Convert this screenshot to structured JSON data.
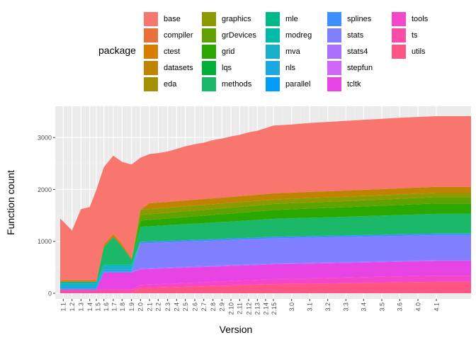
{
  "chart_data": {
    "type": "area",
    "stacked": true,
    "xlabel": "Version",
    "ylabel": "Function count",
    "ylim": [
      0,
      3500
    ],
    "yticks": [
      0,
      1000,
      2000,
      3000
    ],
    "grid": true,
    "legend_title": "package",
    "legend_placement": "top",
    "categories": [
      "1.1",
      "1.2",
      "1.3",
      "1.4",
      "1.5",
      "1.6",
      "1.7",
      "1.8",
      "1.9",
      "2.0",
      "2.1",
      "2.2",
      "2.3",
      "2.4",
      "2.5",
      "2.6",
      "2.7",
      "2.8",
      "2.9",
      "2.10",
      "2.11",
      "2.12",
      "2.13",
      "2.14",
      "2.15",
      "3.0",
      "3.1",
      "3.2",
      "3.3",
      "3.4",
      "3.5",
      "3.6",
      "4.0",
      "4.1"
    ],
    "legend": [
      {
        "name": "base",
        "color": "#F8766D"
      },
      {
        "name": "compiler",
        "color": "#E8703A"
      },
      {
        "name": "ctest",
        "color": "#D97C00"
      },
      {
        "name": "datasets",
        "color": "#BF8300"
      },
      {
        "name": "eda",
        "color": "#A69000"
      },
      {
        "name": "graphics",
        "color": "#8A9A00"
      },
      {
        "name": "grDevices",
        "color": "#62A200"
      },
      {
        "name": "grid",
        "color": "#2AA800"
      },
      {
        "name": "lqs",
        "color": "#00AE38"
      },
      {
        "name": "methods",
        "color": "#1AB868"
      },
      {
        "name": "mle",
        "color": "#00B98A"
      },
      {
        "name": "modreg",
        "color": "#00BBA8"
      },
      {
        "name": "mva",
        "color": "#17B0C8"
      },
      {
        "name": "nls",
        "color": "#19A9E0"
      },
      {
        "name": "parallel",
        "color": "#009EF8"
      },
      {
        "name": "splines",
        "color": "#3D8EFF"
      },
      {
        "name": "stats",
        "color": "#7F7FFF"
      },
      {
        "name": "stats4",
        "color": "#AC70FF"
      },
      {
        "name": "stepfun",
        "color": "#CE66F6"
      },
      {
        "name": "tcltk",
        "color": "#E744E3"
      },
      {
        "name": "tools",
        "color": "#F545C8"
      },
      {
        "name": "ts",
        "color": "#FF4BA8"
      },
      {
        "name": "utils",
        "color": "#FF5585"
      }
    ],
    "series": [
      {
        "name": "utils",
        "values": [
          0,
          0,
          0,
          0,
          0,
          0,
          0,
          0,
          0,
          100,
          105,
          110,
          115,
          120,
          125,
          130,
          135,
          140,
          145,
          150,
          155,
          160,
          165,
          170,
          175,
          180,
          185,
          190,
          195,
          200,
          205,
          210,
          215,
          220
        ]
      },
      {
        "name": "ts",
        "values": [
          70,
          70,
          70,
          70,
          70,
          70,
          70,
          70,
          70,
          0,
          0,
          0,
          0,
          0,
          0,
          0,
          0,
          0,
          0,
          0,
          0,
          0,
          0,
          0,
          0,
          0,
          0,
          0,
          0,
          0,
          0,
          0,
          0,
          0
        ]
      },
      {
        "name": "tools",
        "values": [
          0,
          0,
          0,
          0,
          0,
          0,
          0,
          0,
          0,
          60,
          62,
          65,
          67,
          70,
          72,
          75,
          77,
          80,
          82,
          85,
          87,
          90,
          92,
          95,
          97,
          100,
          102,
          105,
          107,
          110,
          112,
          115,
          117,
          120
        ]
      },
      {
        "name": "tcltk",
        "values": [
          0,
          0,
          0,
          0,
          0,
          330,
          330,
          330,
          330,
          300,
          299,
          298,
          297,
          296,
          295,
          294,
          293,
          292,
          291,
          290,
          289,
          288,
          287,
          286,
          285,
          284,
          283,
          282,
          281,
          280,
          280,
          280,
          280,
          280
        ]
      },
      {
        "name": "stats4",
        "values": [
          0,
          0,
          0,
          0,
          0,
          0,
          0,
          0,
          0,
          20,
          20,
          20,
          20,
          20,
          20,
          20,
          20,
          20,
          20,
          20,
          20,
          20,
          20,
          20,
          20,
          20,
          20,
          20,
          20,
          20,
          20,
          20,
          20,
          20
        ]
      },
      {
        "name": "stats",
        "values": [
          0,
          0,
          0,
          0,
          0,
          0,
          0,
          0,
          0,
          480,
          480,
          480,
          480,
          480,
          480,
          480,
          480,
          480,
          480,
          480,
          480,
          480,
          480,
          480,
          480,
          480,
          480,
          480,
          480,
          480,
          480,
          480,
          480,
          480
        ]
      },
      {
        "name": "splines",
        "values": [
          20,
          20,
          20,
          20,
          20,
          20,
          20,
          20,
          20,
          30,
          30,
          30,
          30,
          30,
          30,
          30,
          30,
          30,
          30,
          30,
          30,
          30,
          30,
          30,
          30,
          30,
          30,
          30,
          30,
          30,
          30,
          30,
          30,
          30
        ]
      },
      {
        "name": "nls",
        "values": [
          40,
          40,
          40,
          40,
          40,
          40,
          40,
          40,
          40,
          0,
          0,
          0,
          0,
          0,
          0,
          0,
          0,
          0,
          0,
          0,
          0,
          0,
          0,
          0,
          0,
          0,
          0,
          0,
          0,
          0,
          0,
          0,
          0,
          0
        ]
      },
      {
        "name": "mva",
        "values": [
          60,
          60,
          60,
          60,
          60,
          60,
          60,
          60,
          60,
          0,
          0,
          0,
          0,
          0,
          0,
          0,
          0,
          0,
          0,
          0,
          0,
          0,
          0,
          0,
          0,
          0,
          0,
          0,
          0,
          0,
          0,
          0,
          0,
          0
        ]
      },
      {
        "name": "modreg",
        "values": [
          30,
          30,
          30,
          30,
          30,
          30,
          30,
          30,
          30,
          0,
          0,
          0,
          0,
          0,
          0,
          0,
          0,
          0,
          0,
          0,
          0,
          0,
          0,
          0,
          0,
          0,
          0,
          0,
          0,
          0,
          0,
          0,
          0,
          0
        ]
      },
      {
        "name": "methods",
        "values": [
          0,
          0,
          0,
          0,
          0,
          340,
          540,
          350,
          100,
          290,
          294,
          297,
          301,
          305,
          309,
          312,
          316,
          320,
          324,
          327,
          331,
          335,
          339,
          342,
          346,
          350,
          354,
          357,
          361,
          365,
          369,
          372,
          376,
          380
        ]
      },
      {
        "name": "grid",
        "values": [
          0,
          0,
          0,
          0,
          0,
          0,
          0,
          0,
          0,
          120,
          123,
          127,
          130,
          133,
          137,
          140,
          143,
          147,
          150,
          153,
          157,
          160,
          163,
          167,
          170,
          173,
          177,
          180,
          183,
          187,
          190,
          193,
          197,
          200
        ]
      },
      {
        "name": "grDevices",
        "values": [
          0,
          0,
          0,
          0,
          0,
          0,
          0,
          0,
          0,
          110,
          110,
          111,
          111,
          112,
          112,
          112,
          113,
          113,
          114,
          114,
          115,
          115,
          115,
          116,
          116,
          117,
          117,
          117,
          118,
          118,
          119,
          119,
          120,
          120
        ]
      },
      {
        "name": "graphics",
        "values": [
          0,
          0,
          0,
          0,
          0,
          0,
          0,
          0,
          0,
          100,
          99,
          98,
          97,
          97,
          96,
          95,
          94,
          93,
          92,
          92,
          91,
          90,
          89,
          88,
          87,
          87,
          86,
          85,
          84,
          83,
          82,
          82,
          81,
          80
        ]
      },
      {
        "name": "datasets",
        "values": [
          0,
          0,
          0,
          0,
          0,
          0,
          0,
          0,
          0,
          0,
          110,
          110,
          111,
          111,
          112,
          112,
          113,
          113,
          114,
          114,
          115,
          115,
          116,
          116,
          117,
          117,
          118,
          118,
          119,
          119,
          119,
          120,
          120,
          120
        ]
      },
      {
        "name": "ctest",
        "values": [
          30,
          30,
          30,
          30,
          30,
          50,
          50,
          50,
          30,
          0,
          0,
          0,
          0,
          0,
          0,
          0,
          0,
          0,
          0,
          0,
          0,
          0,
          0,
          0,
          0,
          0,
          0,
          0,
          0,
          0,
          0,
          0,
          0,
          0
        ]
      },
      {
        "name": "base",
        "values": [
          1190,
          960,
          1370,
          1410,
          1740,
          1490,
          1510,
          1580,
          1800,
          1000,
          948,
          954,
          971,
          1006,
          1042,
          1070,
          1086,
          1122,
          1138,
          1165,
          1180,
          1217,
          1234,
          1270,
          1307,
          1312,
          1328,
          1336,
          1342,
          1348,
          1354,
          1359,
          1359,
          1360
        ]
      }
    ]
  }
}
